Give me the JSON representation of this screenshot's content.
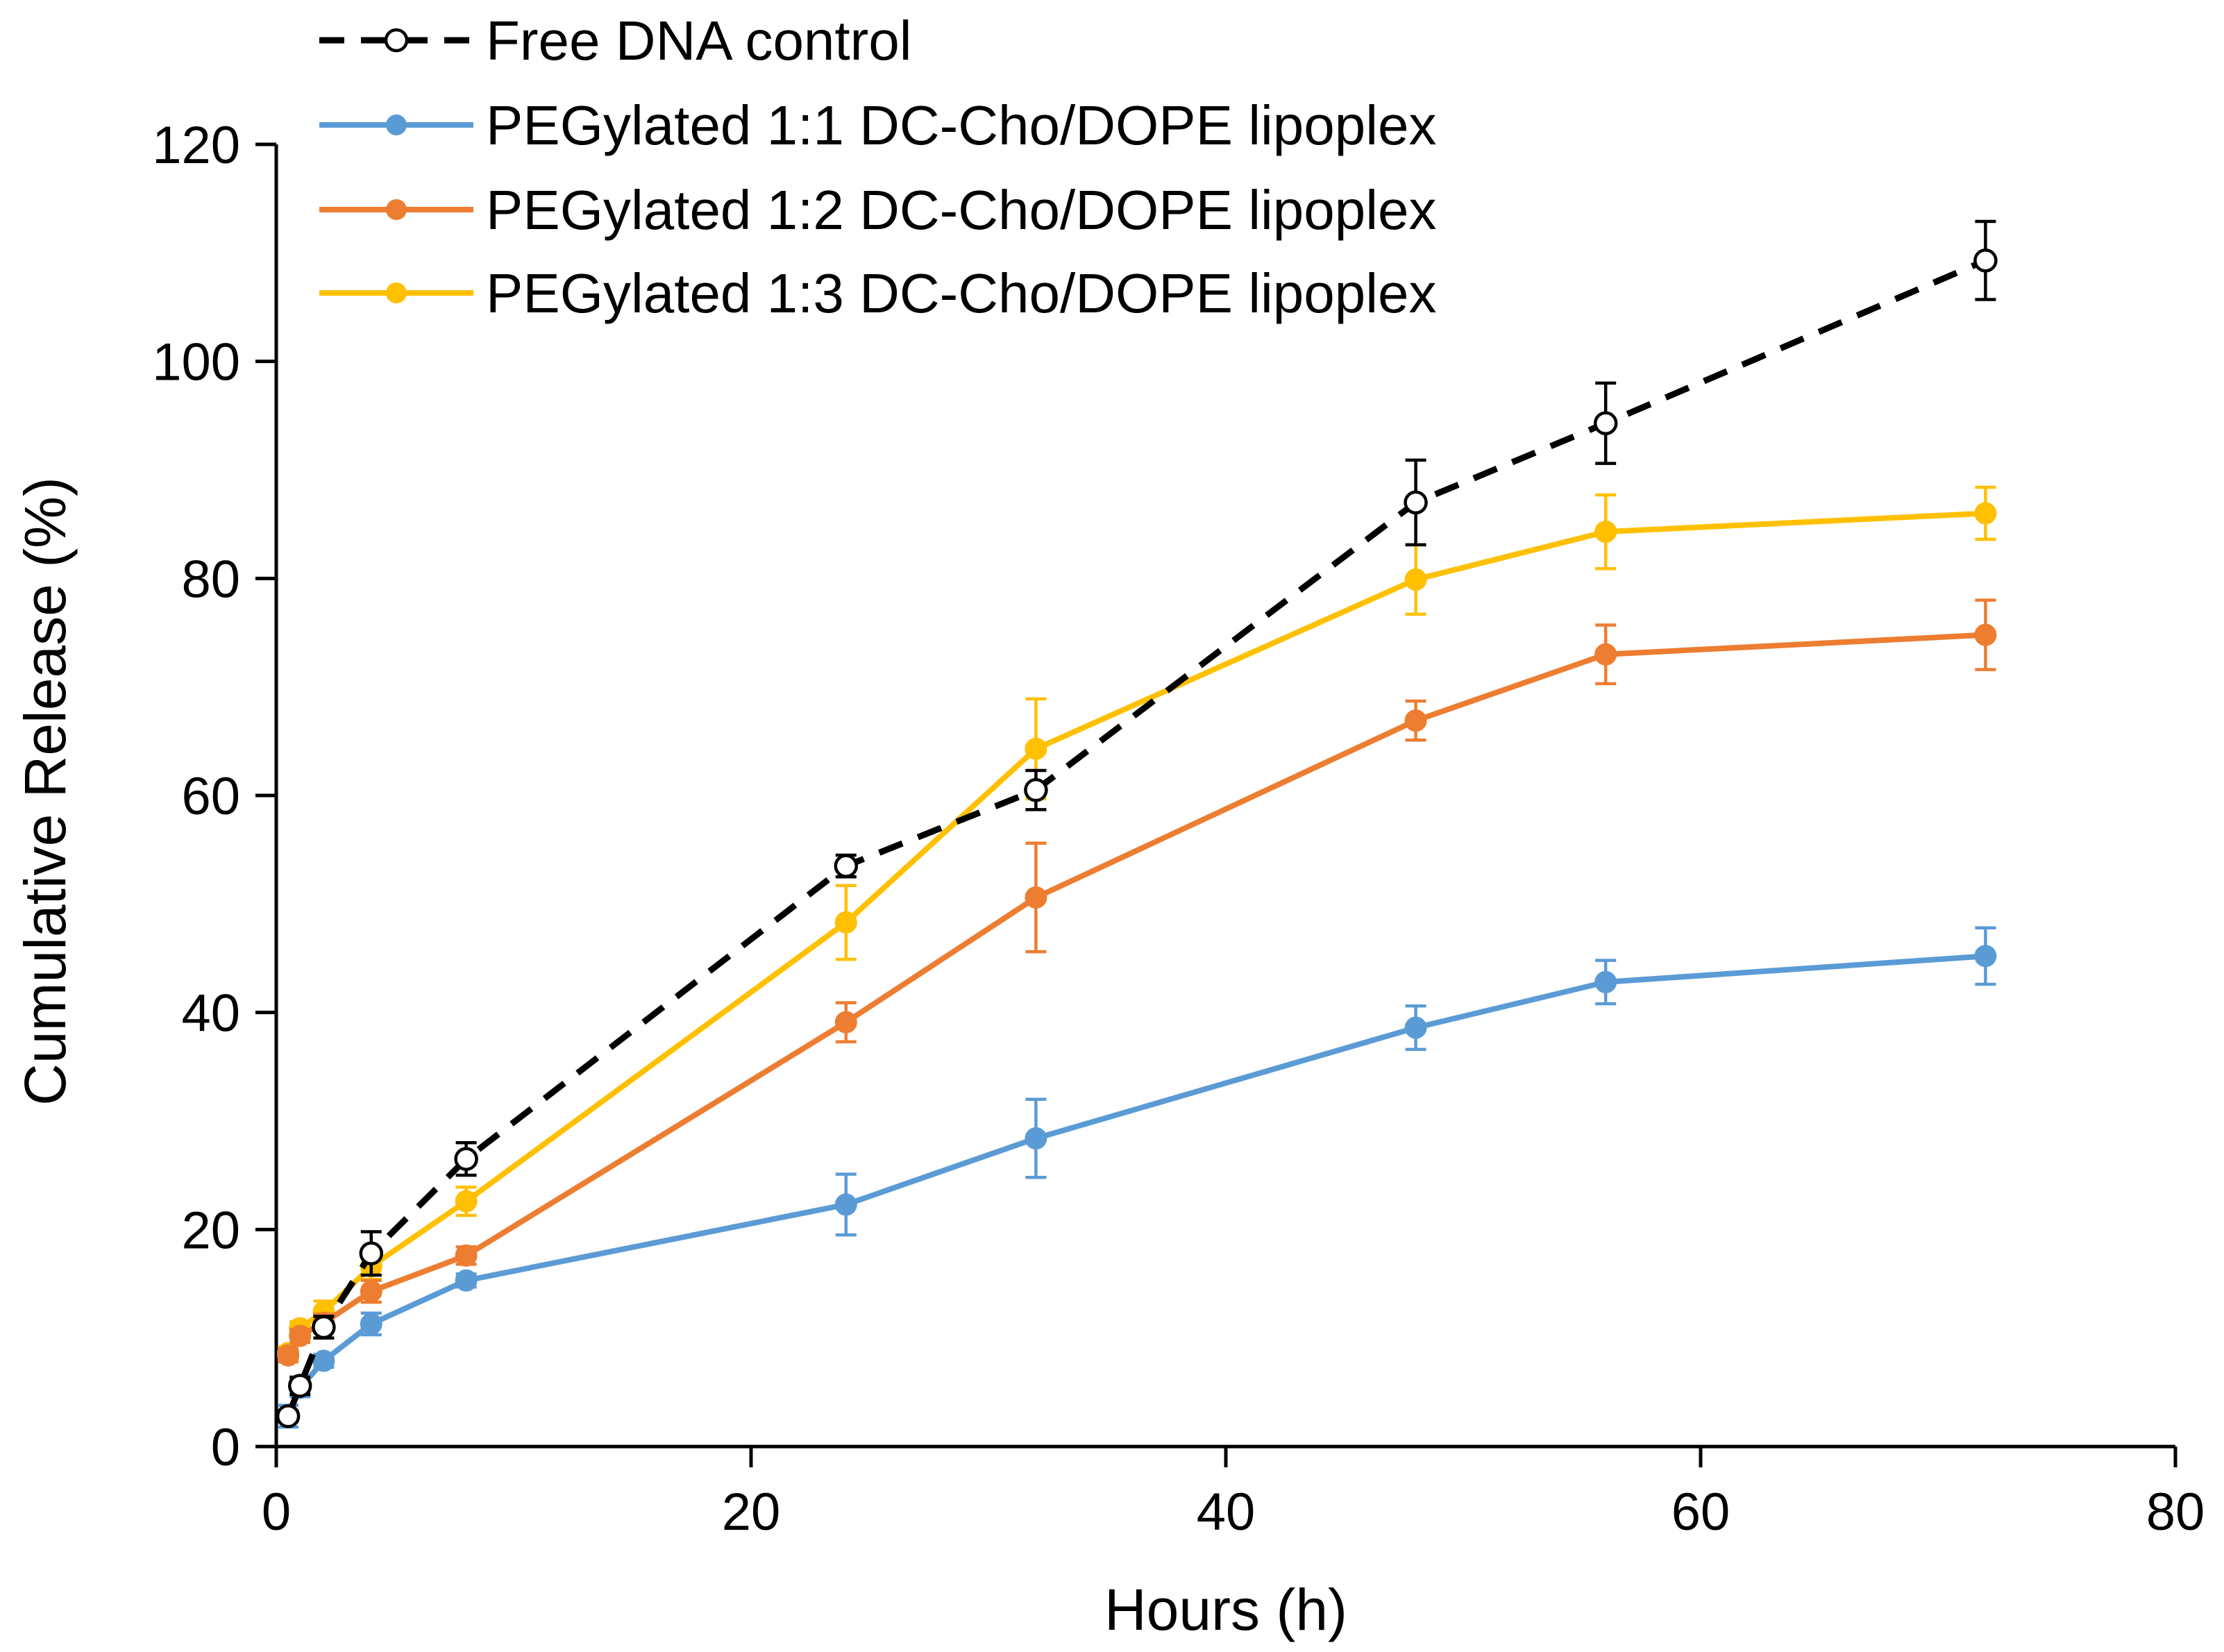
{
  "chart_data": {
    "type": "line",
    "title": "",
    "xlabel": "Hours (h)",
    "ylabel": "Cumulative Release (%)",
    "xlim": [
      0,
      80
    ],
    "ylim": [
      0,
      120
    ],
    "xticks": [
      0,
      20,
      40,
      60,
      80
    ],
    "yticks": [
      0,
      20,
      40,
      60,
      80,
      100,
      120
    ],
    "xtick_labels": [
      "0",
      "20",
      "40",
      "60",
      "80"
    ],
    "ytick_labels": [
      "0",
      "20",
      "40",
      "60",
      "80",
      "100",
      "120"
    ],
    "grid": false,
    "legend_position": "top-left",
    "x": [
      0.5,
      1,
      2,
      4,
      8,
      24,
      32,
      48,
      56,
      72
    ],
    "series": [
      {
        "name": "Free DNA control",
        "color": "#000000",
        "style": "dashed",
        "marker": "open-circle",
        "values": [
          2.8,
          5.6,
          11.0,
          17.8,
          26.5,
          53.5,
          60.5,
          87.0,
          94.3,
          109.3
        ],
        "errors": [
          0.5,
          0.8,
          1.0,
          2.0,
          1.5,
          1.0,
          1.8,
          3.9,
          3.7,
          3.6
        ]
      },
      {
        "name": "PEGylated 1:1 DC-Cho/DOPE lipoplex",
        "color": "#5b9bd5",
        "style": "solid",
        "marker": "filled-circle",
        "values": [
          2.8,
          5.4,
          7.9,
          11.3,
          15.3,
          22.3,
          28.4,
          38.6,
          42.8,
          45.2
        ],
        "errors": [
          1.0,
          0.8,
          0.6,
          1.0,
          0.6,
          2.8,
          3.6,
          2.0,
          2.0,
          2.6
        ]
      },
      {
        "name": "PEGylated 1:2 DC-Cho/DOPE lipoplex",
        "color": "#ed7d31",
        "style": "solid",
        "marker": "filled-circle",
        "values": [
          8.4,
          10.2,
          11.4,
          14.3,
          17.6,
          39.1,
          50.6,
          66.9,
          73.0,
          74.8
        ],
        "errors": [
          0.6,
          0.6,
          0.8,
          1.0,
          0.8,
          1.8,
          5.0,
          1.8,
          2.7,
          3.2
        ]
      },
      {
        "name": "PEGylated 1:3 DC-Cho/DOPE lipoplex",
        "color": "#ffc000",
        "style": "solid",
        "marker": "filled-circle",
        "values": [
          8.6,
          10.9,
          12.4,
          16.6,
          22.6,
          48.3,
          64.3,
          79.9,
          84.3,
          86.0
        ],
        "errors": [
          0.6,
          0.6,
          1.0,
          1.2,
          1.3,
          3.4,
          4.6,
          3.2,
          3.4,
          2.4
        ]
      }
    ]
  }
}
